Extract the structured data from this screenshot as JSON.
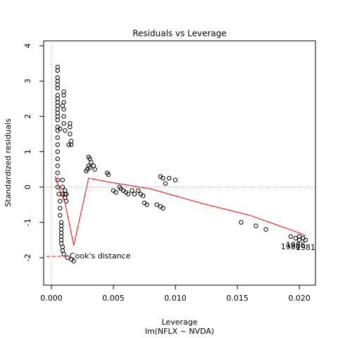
{
  "chart_data": {
    "type": "scatter",
    "title": "Residuals vs Leverage",
    "x_label": "Leverage",
    "y_label": "Standardized residuals",
    "subtitle": "lm(NFLX ~ NVDA)",
    "xlim": [
      -0.000625,
      0.0213
    ],
    "ylim": [
      -2.78,
      4.14
    ],
    "xticks": [
      {
        "value": 0,
        "label": "0.000"
      },
      0.005,
      {
        "value": 0.01,
        "label": "0.010"
      },
      0.015,
      {
        "value": 0.02,
        "label": "0.020"
      }
    ],
    "yticks": [
      -2,
      -1,
      0,
      1,
      2,
      3,
      4
    ],
    "hline": 0,
    "vline": 0,
    "points": {
      "color": "#000000",
      "x": [
        0.0005,
        0.0005,
        0.0005,
        0.0005,
        0.0005,
        0.0005,
        0.0005,
        0.0005,
        0.0005,
        0.0005,
        0.0005,
        0.0005,
        0.0005,
        0.0005,
        0.0005,
        0.0005,
        0.0005,
        0.0005,
        0.0005,
        0.0005,
        0.0005,
        0.0005,
        0.0005,
        0.0005,
        0.0006,
        0.0007,
        0.0007,
        0.0007,
        0.0008,
        0.0008,
        0.0008,
        0.0008,
        0.0008,
        0.0008,
        0.0008,
        0.0009,
        0.0009,
        0.0009,
        0.0009,
        0.0009,
        0.001,
        0.001,
        0.001,
        0.001,
        0.001,
        0.001,
        0.0011,
        0.0011,
        0.0011,
        0.0011,
        0.0012,
        0.0014,
        0.0015,
        0.0015,
        0.0015,
        0.0016,
        0.0016,
        0.001,
        0.0013,
        0.0016,
        0.0018,
        0.0007,
        0.0009,
        0.0012,
        0.003,
        0.0031,
        0.0032,
        0.003,
        0.0031,
        0.0029,
        0.0028,
        0.0034,
        0.0035,
        0.0045,
        0.0046,
        0.005,
        0.0052,
        0.0055,
        0.0056,
        0.0058,
        0.006,
        0.0062,
        0.0065,
        0.0067,
        0.007,
        0.0072,
        0.0074,
        0.0075,
        0.0077,
        0.0085,
        0.0088,
        0.009,
        0.0088,
        0.009,
        0.0092,
        0.0095,
        0.01,
        0.0153,
        0.0165,
        0.0173,
        0.0193,
        0.0197,
        0.02,
        0.02,
        0.0203,
        0.0205
      ],
      "y": [
        3.4,
        3.3,
        3.1,
        3.0,
        2.9,
        2.8,
        2.6,
        2.5,
        2.4,
        2.3,
        2.2,
        2.1,
        2.0,
        1.9,
        1.7,
        1.6,
        1.4,
        1.2,
        1.0,
        0.8,
        0.6,
        0.4,
        0.2,
        0.0,
        -0.2,
        -0.4,
        -0.6,
        -0.8,
        -1.0,
        -1.1,
        -1.2,
        -1.3,
        -1.4,
        -1.5,
        -1.6,
        -1.7,
        -1.8,
        0.2,
        0.0,
        -0.2,
        2.7,
        2.6,
        2.4,
        2.2,
        2.0,
        1.8,
        1.6,
        -0.1,
        -0.2,
        -0.3,
        -0.2,
        1.2,
        1.8,
        1.7,
        1.5,
        1.3,
        1.2,
        -1.9,
        -2.0,
        -2.05,
        -2.1,
        1.65,
        2.3,
        -0.4,
        0.85,
        0.8,
        0.7,
        0.6,
        0.55,
        0.5,
        0.45,
        0.6,
        0.5,
        0.4,
        0.35,
        -0.1,
        -0.15,
        0.0,
        -0.05,
        -0.1,
        -0.15,
        -0.2,
        -0.1,
        -0.2,
        -0.1,
        -0.2,
        -0.25,
        -0.45,
        -0.5,
        -0.5,
        -0.55,
        -0.6,
        0.3,
        0.25,
        0.1,
        0.25,
        0.2,
        -1.0,
        -1.1,
        -1.2,
        -1.4,
        -1.45,
        -1.4,
        -1.5,
        -1.45,
        -1.5
      ]
    },
    "smooth": {
      "color": "#ff0000",
      "x": [
        0.0003,
        0.0008,
        0.0011,
        0.0018,
        0.003,
        0.005,
        0.008,
        0.012,
        0.016,
        0.02,
        0.0205
      ],
      "y": [
        0.3,
        -0.2,
        -0.45,
        -1.65,
        0.25,
        0.12,
        -0.05,
        -0.45,
        -0.8,
        -1.3,
        -1.38
      ]
    },
    "legend": {
      "label": "Cook's distance",
      "color": "#ff0000"
    },
    "annotations": [
      {
        "text": "1980",
        "x": 0.0193,
        "y": -1.7
      },
      {
        "text": "1986",
        "x": 0.0197,
        "y": -1.65
      },
      {
        "text": "1981",
        "x": 0.0205,
        "y": -1.72
      }
    ]
  }
}
